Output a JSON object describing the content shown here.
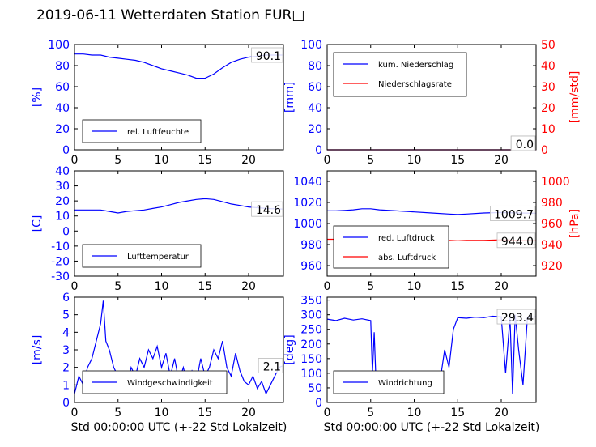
{
  "title": "2019-06-11 Wetterdaten Station FUR□",
  "xlabel": "Std 00:00:00 UTC (+-22 Std Lokalzeit)",
  "colors": {
    "left_axis": "#0000ff",
    "right_axis": "#ff0000",
    "series1": "#0000ff",
    "series2": "#ff0000",
    "text": "#000000"
  },
  "chart_data": [
    {
      "type": "line",
      "ylabel": "[%]",
      "xlim": [
        0,
        24
      ],
      "ylim": [
        0,
        100
      ],
      "xticks": [
        0,
        5,
        10,
        15,
        20
      ],
      "yticks": [
        0,
        20,
        40,
        60,
        80,
        100
      ],
      "legend": "bottom-left",
      "value_label": "90.1",
      "series": [
        {
          "name": "rel. Luftfeuchte",
          "axis": "left",
          "color": "#0000ff",
          "x": [
            0,
            1,
            2,
            3,
            4,
            5,
            6,
            7,
            8,
            9,
            10,
            11,
            12,
            13,
            14,
            15,
            16,
            17,
            18,
            19,
            20,
            21,
            22,
            23,
            24
          ],
          "y": [
            91,
            91,
            90,
            90,
            88,
            87,
            86,
            85,
            83,
            80,
            77,
            75,
            73,
            71,
            68,
            68,
            72,
            78,
            83,
            86,
            88,
            89,
            90,
            90,
            90
          ]
        }
      ]
    },
    {
      "type": "line",
      "ylabel": "[mm]",
      "ylabel_right": "[mm/std]",
      "xlim": [
        0,
        24
      ],
      "ylim": [
        0,
        100
      ],
      "ylim_right": [
        0,
        50
      ],
      "xticks": [
        0,
        5,
        10,
        15,
        20
      ],
      "yticks": [
        0,
        20,
        40,
        60,
        80,
        100
      ],
      "yticks_right": [
        0,
        10,
        20,
        30,
        40,
        50
      ],
      "legend": "top-left",
      "value_label": "0.0",
      "value_label_right": "0.0",
      "series": [
        {
          "name": "kum. Niederschlag",
          "axis": "left",
          "color": "#0000ff",
          "x": [
            0,
            24
          ],
          "y": [
            0,
            0
          ]
        },
        {
          "name": "Niederschlagsrate",
          "axis": "right",
          "color": "#ff0000",
          "x": [
            0,
            24
          ],
          "y": [
            0,
            0
          ]
        }
      ]
    },
    {
      "type": "line",
      "ylabel": "[C]",
      "xlim": [
        0,
        24
      ],
      "ylim": [
        -30,
        40
      ],
      "xticks": [
        0,
        5,
        10,
        15,
        20
      ],
      "yticks": [
        -30,
        -20,
        -10,
        0,
        10,
        20,
        30,
        40
      ],
      "legend": "bottom-left",
      "value_label": "14.6",
      "series": [
        {
          "name": "Lufttemperatur",
          "axis": "left",
          "color": "#0000ff",
          "x": [
            0,
            1,
            2,
            3,
            4,
            5,
            6,
            7,
            8,
            9,
            10,
            11,
            12,
            13,
            14,
            15,
            16,
            17,
            18,
            19,
            20,
            21,
            22,
            23,
            24
          ],
          "y": [
            14,
            14,
            14,
            14,
            13,
            12,
            13,
            13.5,
            14,
            15,
            16,
            17.5,
            19,
            20,
            21,
            21.5,
            21,
            19.5,
            18,
            17,
            16,
            15.5,
            15,
            14.8,
            14.6
          ]
        }
      ]
    },
    {
      "type": "line",
      "ylabel_right": "[hPa]",
      "xlim": [
        0,
        24
      ],
      "ylim": [
        950,
        1050
      ],
      "ylim_right": [
        910,
        1010
      ],
      "xticks": [
        0,
        5,
        10,
        15,
        20
      ],
      "yticks": [
        960,
        980,
        1000,
        1020,
        1040
      ],
      "yticks_right": [
        920,
        940,
        960,
        980,
        1000
      ],
      "legend": "bottom-left",
      "value_label": "1009.7",
      "value_label_right": "944.0",
      "series": [
        {
          "name": "red. Luftdruck",
          "axis": "left",
          "color": "#0000ff",
          "x": [
            0,
            1,
            2,
            3,
            4,
            5,
            6,
            8,
            10,
            12,
            14,
            15,
            16,
            18,
            20,
            22,
            24
          ],
          "y": [
            1012,
            1012,
            1012.5,
            1013,
            1014,
            1014,
            1013,
            1012,
            1011,
            1010,
            1009,
            1008.5,
            1009,
            1010,
            1010.5,
            1010,
            1009.7
          ]
        },
        {
          "name": "abs. Luftdruck",
          "axis": "right",
          "color": "#ff0000",
          "x": [
            0,
            1,
            2,
            3,
            4,
            5,
            6,
            8,
            10,
            12,
            14,
            15,
            16,
            18,
            20,
            22,
            24
          ],
          "y": [
            945,
            945,
            945.5,
            946,
            947,
            947,
            946,
            945.5,
            945,
            944.5,
            944,
            943.5,
            944,
            944,
            944.5,
            944,
            944
          ]
        }
      ]
    },
    {
      "type": "line",
      "ylabel": "[m/s]",
      "xlim": [
        0,
        24
      ],
      "ylim": [
        0,
        6
      ],
      "xticks": [
        0,
        5,
        10,
        15,
        20
      ],
      "yticks": [
        0,
        1,
        2,
        3,
        4,
        5,
        6
      ],
      "legend": "bottom-center",
      "value_label": "2.1",
      "series": [
        {
          "name": "Windgeschwindigkeit",
          "axis": "left",
          "color": "#0000ff",
          "x": [
            0,
            0.5,
            1,
            1.5,
            2,
            2.5,
            3,
            3.3,
            3.6,
            4,
            4.5,
            5,
            5.5,
            6,
            6.5,
            7,
            7.5,
            8,
            8.5,
            9,
            9.5,
            10,
            10.5,
            11,
            11.5,
            12,
            12.5,
            13,
            13.5,
            14,
            14.5,
            15,
            15.5,
            16,
            16.5,
            17,
            17.5,
            18,
            18.5,
            19,
            19.5,
            20,
            20.5,
            21,
            21.5,
            22,
            22.5,
            23,
            23.5,
            24
          ],
          "y": [
            0.5,
            1.5,
            1.0,
            2.0,
            2.5,
            3.5,
            4.5,
            5.8,
            3.5,
            3.0,
            2.0,
            1.5,
            1.2,
            0.8,
            2.0,
            1.5,
            2.5,
            2.0,
            3.0,
            2.5,
            3.2,
            2.0,
            2.8,
            1.5,
            2.5,
            1.2,
            2.0,
            1.0,
            1.8,
            1.2,
            2.5,
            1.5,
            2.0,
            3.0,
            2.5,
            3.5,
            2.0,
            1.5,
            2.8,
            1.8,
            1.2,
            1.0,
            1.5,
            0.8,
            1.2,
            0.5,
            1.0,
            1.5,
            2.0,
            2.1
          ]
        }
      ]
    },
    {
      "type": "line",
      "ylabel": "[deg]",
      "xlim": [
        0,
        24
      ],
      "ylim": [
        0,
        360
      ],
      "xticks": [
        0,
        5,
        10,
        15,
        20
      ],
      "yticks": [
        0,
        50,
        100,
        150,
        200,
        250,
        300,
        350
      ],
      "legend": "bottom-left",
      "value_label": "293.4",
      "series": [
        {
          "name": "Windrichtung",
          "axis": "left",
          "color": "#0000ff",
          "x": [
            0,
            1,
            2,
            3,
            4,
            5,
            5.2,
            5.4,
            5.6,
            6,
            7,
            8,
            9,
            10,
            11,
            12,
            13,
            13.5,
            14,
            14.5,
            15,
            16,
            17,
            18,
            19,
            20,
            20.5,
            21,
            21.3,
            21.6,
            22,
            22.5,
            23,
            24
          ],
          "y": [
            285,
            280,
            288,
            282,
            286,
            280,
            100,
            240,
            80,
            90,
            85,
            80,
            75,
            80,
            70,
            75,
            80,
            180,
            120,
            250,
            290,
            288,
            292,
            290,
            295,
            293,
            100,
            290,
            30,
            300,
            180,
            60,
            290,
            293.4
          ]
        }
      ]
    }
  ]
}
